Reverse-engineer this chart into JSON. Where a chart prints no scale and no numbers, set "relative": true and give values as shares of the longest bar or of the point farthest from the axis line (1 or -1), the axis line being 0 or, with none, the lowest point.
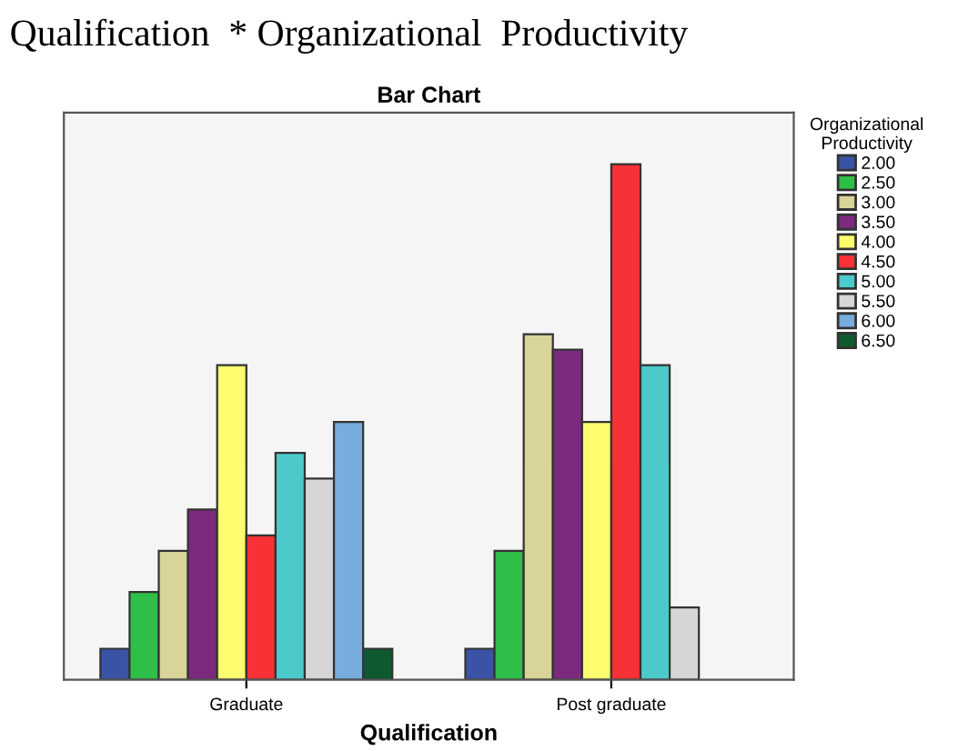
{
  "chart_data": {
    "type": "bar",
    "title": "Qualification  * Organizational  Productivity",
    "subtitle": "Bar Chart",
    "xlabel": "Qualification",
    "legend_title": "Organizational\nProductivity",
    "relative": true,
    "legend": "top right",
    "grid": false,
    "categories": [
      "Graduate",
      "Post graduate"
    ],
    "series": [
      {
        "name": "2.00",
        "color": "#3a53a4",
        "values": [
          0.06,
          0.06
        ]
      },
      {
        "name": "2.50",
        "color": "#2fbf48",
        "values": [
          0.17,
          0.25
        ]
      },
      {
        "name": "3.00",
        "color": "#d8d49a",
        "values": [
          0.25,
          0.67
        ]
      },
      {
        "name": "3.50",
        "color": "#7c2a7e",
        "values": [
          0.33,
          0.64
        ]
      },
      {
        "name": "4.00",
        "color": "#fdfd6e",
        "values": [
          0.61,
          0.5
        ]
      },
      {
        "name": "4.50",
        "color": "#f83136",
        "values": [
          0.28,
          1
        ]
      },
      {
        "name": "5.00",
        "color": "#4cc9cb",
        "values": [
          0.44,
          0.61
        ]
      },
      {
        "name": "5.50",
        "color": "#d6d6d6",
        "values": [
          0.39,
          0.14
        ]
      },
      {
        "name": "6.00",
        "color": "#78acdc",
        "values": [
          0.5,
          null
        ]
      },
      {
        "name": "6.50",
        "color": "#0e5a2e",
        "values": [
          0.06,
          null
        ]
      }
    ]
  }
}
